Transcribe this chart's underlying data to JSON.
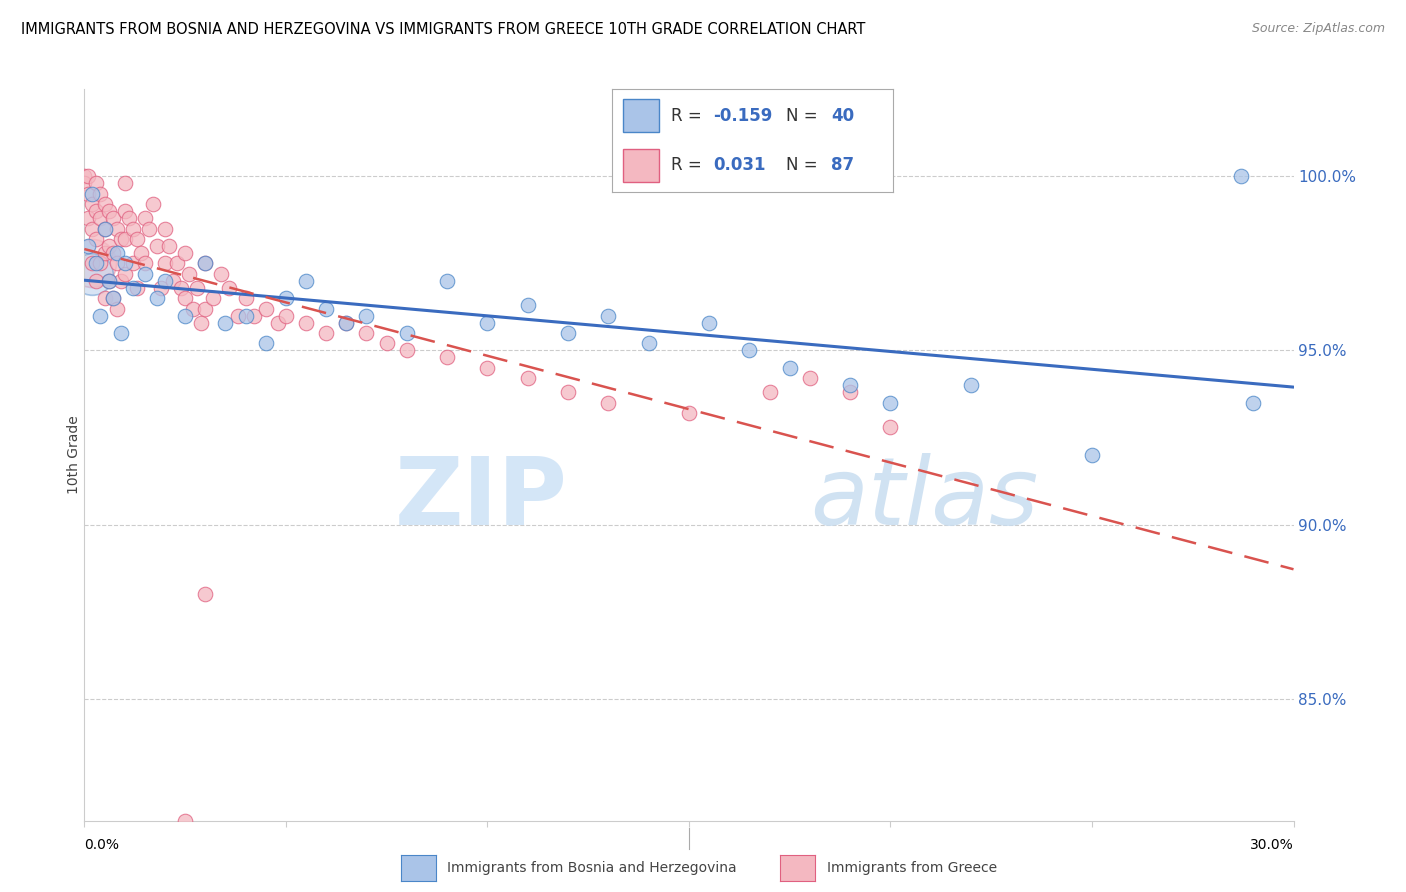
{
  "title": "IMMIGRANTS FROM BOSNIA AND HERZEGOVINA VS IMMIGRANTS FROM GREECE 10TH GRADE CORRELATION CHART",
  "source": "Source: ZipAtlas.com",
  "ylabel": "10th Grade",
  "ytick_labels": [
    "100.0%",
    "95.0%",
    "90.0%",
    "85.0%"
  ],
  "ytick_values": [
    1.0,
    0.95,
    0.9,
    0.85
  ],
  "xlim": [
    0.0,
    0.3
  ],
  "ylim": [
    0.815,
    1.025
  ],
  "legend_blue_R": "-0.159",
  "legend_blue_N": "40",
  "legend_pink_R": "0.031",
  "legend_pink_N": "87",
  "blue_fill": "#aac4e8",
  "pink_fill": "#f4b8c1",
  "blue_edge": "#4a86c8",
  "pink_edge": "#e06080",
  "blue_line": "#3a6bbf",
  "pink_line": "#d9534f",
  "grid_color": "#cccccc",
  "watermark_zip_color": "#d0e4f7",
  "watermark_atlas_color": "#c8ddf0"
}
